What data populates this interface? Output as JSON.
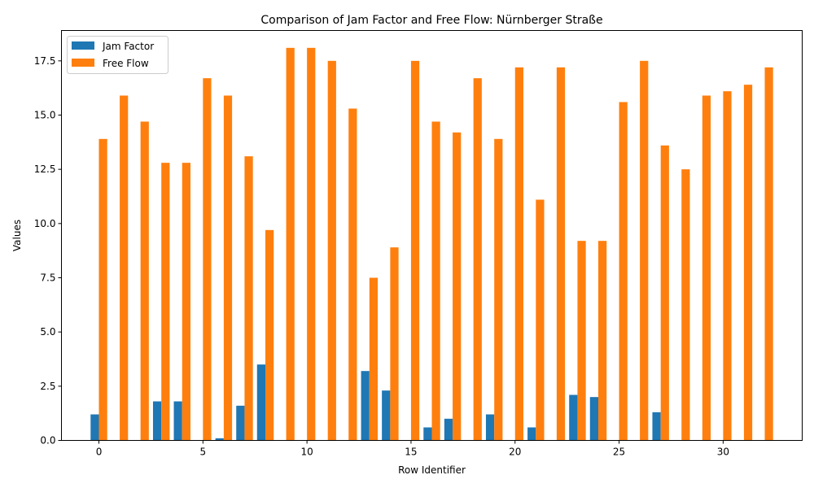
{
  "chart_data": {
    "type": "bar",
    "title": "Comparison of Jam Factor and Free Flow: Nürnberger Straße",
    "xlabel": "Row Identifier",
    "ylabel": "Values",
    "x": [
      0,
      1,
      2,
      3,
      4,
      5,
      6,
      7,
      8,
      9,
      10,
      11,
      12,
      13,
      14,
      15,
      16,
      17,
      18,
      19,
      20,
      21,
      22,
      23,
      24,
      25,
      26,
      27,
      28,
      29,
      30,
      31,
      32
    ],
    "xlim": [
      -1.8,
      33.8
    ],
    "ylim": [
      0,
      18.9
    ],
    "xticks": [
      0,
      5,
      10,
      15,
      20,
      25,
      30
    ],
    "xtick_labels": [
      "0",
      "5",
      "10",
      "15",
      "20",
      "25",
      "30"
    ],
    "yticks": [
      0,
      2.5,
      5,
      7.5,
      10,
      12.5,
      15,
      17.5
    ],
    "ytick_labels": [
      "0.0",
      "2.5",
      "5.0",
      "7.5",
      "10.0",
      "12.5",
      "15.0",
      "17.5"
    ],
    "grid": false,
    "legend_position": "top-left",
    "series": [
      {
        "name": "Jam Factor",
        "color": "#1f77b4",
        "values": [
          1.2,
          0,
          0,
          1.8,
          1.8,
          0,
          0.1,
          1.6,
          3.5,
          0,
          0,
          0,
          0,
          3.2,
          2.3,
          0,
          0.6,
          1.0,
          0,
          1.2,
          0,
          0.6,
          0,
          2.1,
          2.0,
          0,
          0,
          1.3,
          0,
          0,
          0,
          0,
          0
        ]
      },
      {
        "name": "Free Flow",
        "color": "#ff7f0e",
        "values": [
          13.9,
          15.9,
          14.7,
          12.8,
          12.8,
          16.7,
          15.9,
          13.1,
          9.7,
          18.1,
          18.1,
          17.5,
          15.3,
          7.5,
          8.9,
          17.5,
          14.7,
          14.2,
          16.7,
          13.9,
          17.2,
          11.1,
          17.2,
          9.2,
          9.2,
          15.6,
          17.5,
          13.6,
          12.5,
          15.9,
          16.1,
          16.4,
          17.2
        ]
      }
    ]
  }
}
